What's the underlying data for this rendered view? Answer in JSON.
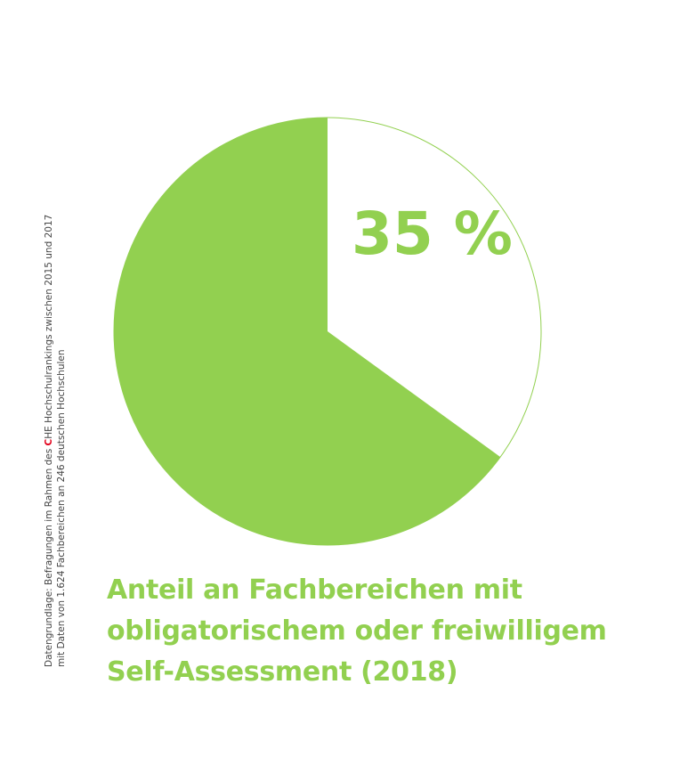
{
  "chart_data": {
    "type": "pie",
    "slices": [
      {
        "value": 35,
        "label": "35 %",
        "color": "#ffffff"
      },
      {
        "value": 65,
        "label": "",
        "color": "#92d050"
      }
    ],
    "stroke_color": "#92d050",
    "title": [
      "Anteil an Fachbereichen mit",
      "obligatorischem oder freiwilligem",
      "Self-Assessment (2018)"
    ]
  },
  "source": {
    "line1_before": "Datengrundlage: Befragungen im Rahmen des ",
    "line1_highlight": "C",
    "line1_after": "HE Hochschulrankings zwischen 2015 und 2017",
    "line2": "mit Daten von 1.624 Fachbereichen an 246 deutschen Hochschulen"
  }
}
